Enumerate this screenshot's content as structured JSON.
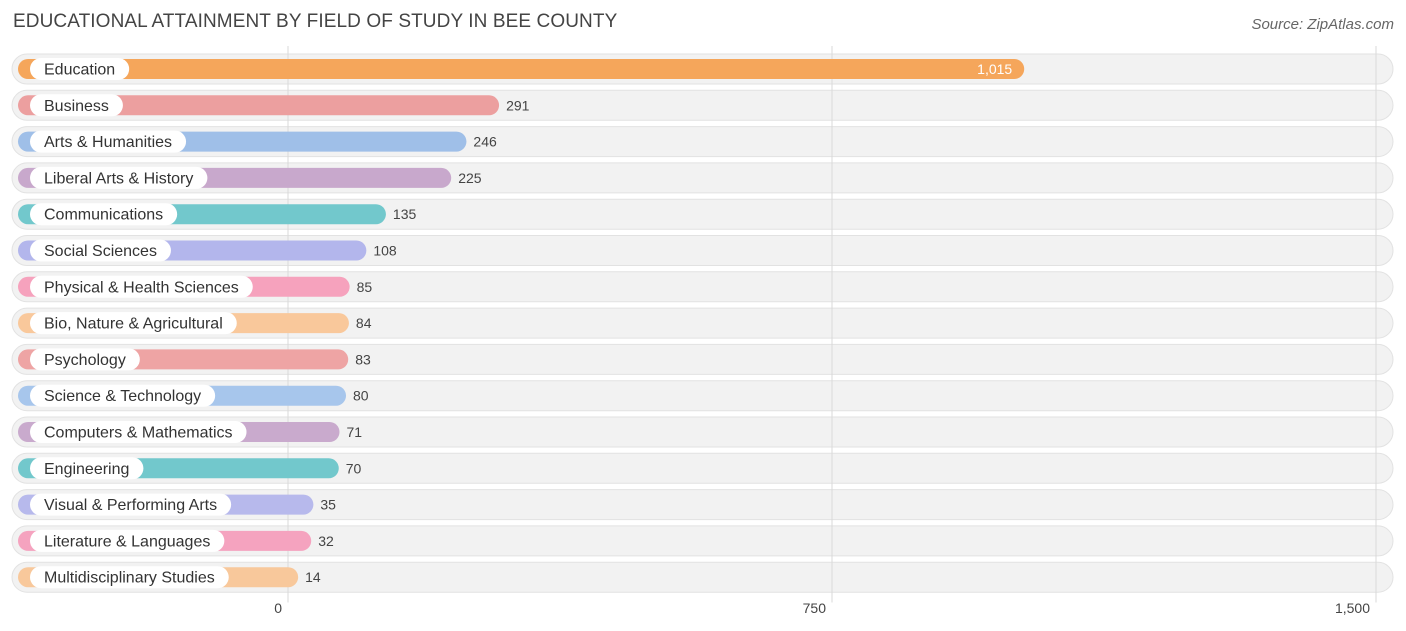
{
  "header": {
    "title": "EDUCATIONAL ATTAINMENT BY FIELD OF STUDY IN BEE COUNTY",
    "source": "Source: ZipAtlas.com"
  },
  "chart_data": {
    "type": "bar",
    "orientation": "horizontal",
    "title": "EDUCATIONAL ATTAINMENT BY FIELD OF STUDY IN BEE COUNTY",
    "categories": [
      "Education",
      "Business",
      "Arts & Humanities",
      "Liberal Arts & History",
      "Communications",
      "Social Sciences",
      "Physical & Health Sciences",
      "Bio, Nature & Agricultural",
      "Psychology",
      "Science & Technology",
      "Computers & Mathematics",
      "Engineering",
      "Visual & Performing Arts",
      "Literature & Languages",
      "Multidisciplinary Studies"
    ],
    "values": [
      1015,
      291,
      246,
      225,
      135,
      108,
      85,
      84,
      83,
      80,
      71,
      70,
      35,
      32,
      14
    ],
    "value_labels": [
      "1,015",
      "291",
      "246",
      "225",
      "135",
      "108",
      "85",
      "84",
      "83",
      "80",
      "71",
      "70",
      "35",
      "32",
      "14"
    ],
    "colors": [
      "#f5a65b",
      "#ec9f9f",
      "#9fbfe8",
      "#c8a8cc",
      "#72c8cc",
      "#b3b6ec",
      "#f6a2bd",
      "#f9c89b",
      "#eea4a4",
      "#a7c6ec",
      "#c9aacd",
      "#72c8cc",
      "#b7b9ec",
      "#f5a3bf",
      "#f8c89b"
    ],
    "xlim": [
      0,
      1500
    ],
    "ticks": [
      0,
      750,
      1500
    ],
    "tick_labels": [
      "0",
      "750",
      "1,500"
    ],
    "grid": true
  }
}
